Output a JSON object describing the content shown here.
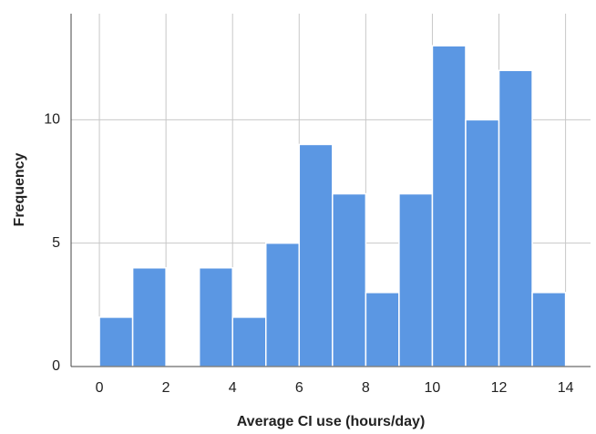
{
  "chart_data": {
    "type": "histogram",
    "x_label": "Average CI use (hours/day)",
    "y_label": "Frequency",
    "bins": [
      0,
      1,
      2,
      3,
      4,
      5,
      6,
      7,
      8,
      9,
      10,
      11,
      12,
      13,
      14
    ],
    "counts": [
      2,
      4,
      0,
      4,
      2,
      5,
      9,
      7,
      3,
      7,
      13,
      10,
      12,
      3
    ],
    "color": "#5b97e3",
    "xlim": [
      -0.85,
      14.75
    ],
    "ylim": [
      0,
      14.3
    ],
    "xticks": [
      0,
      2,
      4,
      6,
      8,
      10,
      12,
      14
    ],
    "yticks": [
      0,
      5,
      10
    ],
    "grid": true
  }
}
